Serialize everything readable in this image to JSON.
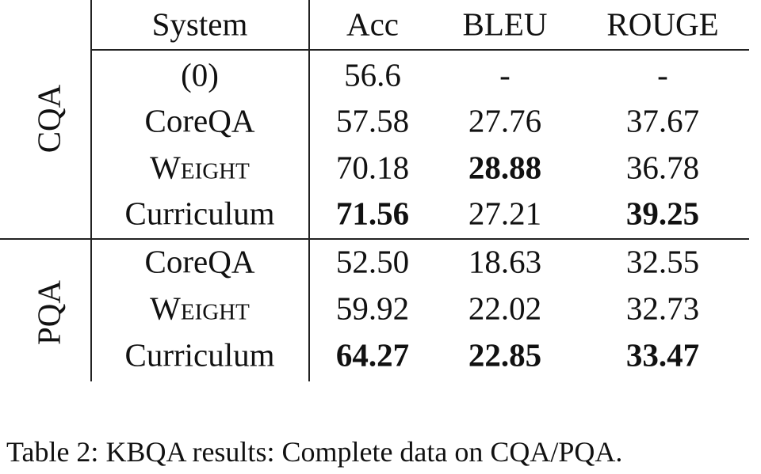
{
  "table": {
    "header": [
      "System",
      "Acc",
      "BLEU",
      "ROUGE"
    ],
    "groups": [
      {
        "label": "CQA",
        "rows": [
          {
            "cells": [
              "(0)",
              "56.6",
              "-",
              "-"
            ],
            "bold": []
          },
          {
            "cells": [
              "CoreQA",
              "57.58",
              "27.76",
              "37.67"
            ],
            "bold": []
          },
          {
            "cells": [
              "Weight",
              "70.18",
              "28.88",
              "36.78"
            ],
            "bold": [
              2
            ],
            "small_caps": true
          },
          {
            "cells": [
              "Curriculum",
              "71.56",
              "27.21",
              "39.25"
            ],
            "bold": [
              1,
              3
            ]
          }
        ]
      },
      {
        "label": "PQA",
        "rows": [
          {
            "cells": [
              "CoreQA",
              "52.50",
              "18.63",
              "32.55"
            ],
            "bold": []
          },
          {
            "cells": [
              "Weight",
              "59.92",
              "22.02",
              "32.73"
            ],
            "bold": [],
            "small_caps": true
          },
          {
            "cells": [
              "Curriculum",
              "64.27",
              "22.85",
              "33.47"
            ],
            "bold": [
              1,
              2,
              3
            ]
          }
        ]
      }
    ]
  },
  "caption": "Table 2: KBQA results: Complete data on CQA/PQA."
}
